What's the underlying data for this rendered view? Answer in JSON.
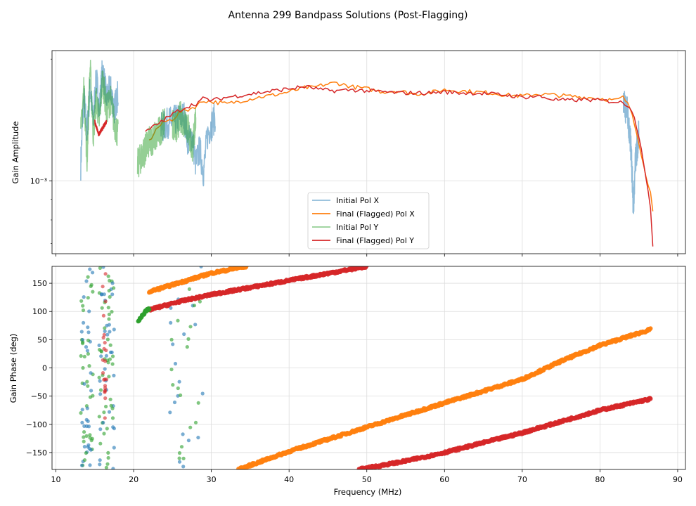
{
  "figure_title": "Antenna 299 Bandpass Solutions (Post-Flagging)",
  "colors": {
    "initial_x": "#1f77b4",
    "final_x": "#ff7f0e",
    "initial_y": "#2ca02c",
    "final_y": "#d62728"
  },
  "chart_data": [
    {
      "type": "line",
      "title": "",
      "xlabel": "",
      "ylabel": "Gain Amplitude",
      "yscale": "log",
      "xlim": [
        9.5,
        91
      ],
      "ylim": [
        0.00066,
        0.0021
      ],
      "ytick_labels": [
        {
          "value": 0.001,
          "label": "10⁻³"
        }
      ],
      "legend": {
        "position": "lower-center",
        "entries": [
          "Initial Pol X",
          "Final (Flagged) Pol X",
          "Initial Pol Y",
          "Final (Flagged) Pol Y"
        ]
      },
      "series": [
        {
          "name": "Initial Pol X",
          "color_key": "initial_x",
          "alpha": 0.5,
          "segments": [
            {
              "x": [
                13.2,
                13.6,
                14.0,
                14.4,
                14.8,
                15.2,
                15.6,
                16.0,
                16.5,
                17.0,
                17.5,
                18.0
              ],
              "y": [
                0.0011,
                0.0016,
                0.0013,
                0.0017,
                0.0014,
                0.0018,
                0.0015,
                0.0019,
                0.0016,
                0.0017,
                0.0015,
                0.00165
              ]
            },
            {
              "x": [
                23.5,
                24.5,
                25.5,
                26.5,
                27.0,
                27.5,
                28.0,
                28.5,
                29.0,
                29.5,
                30.5
              ],
              "y": [
                0.00135,
                0.0014,
                0.00142,
                0.00145,
                0.00125,
                0.0013,
                0.0011,
                0.0012,
                0.00105,
                0.0013,
                0.00145
              ]
            },
            {
              "x": [
                83.0,
                83.5,
                84.0,
                84.3,
                84.6,
                85.0
              ],
              "y": [
                0.00155,
                0.0015,
                0.0012,
                0.00085,
                0.00115,
                0.0013
              ]
            }
          ]
        },
        {
          "name": "Final (Flagged) Pol X",
          "color_key": "final_x",
          "alpha": 1,
          "segments": [
            {
              "x": [
                22.0,
                23.0,
                24.0,
                25.0,
                26.0,
                27.0,
                28.0,
                29.0,
                30.0,
                32.0,
                34.0,
                36.0,
                38.0,
                40.0,
                42.0,
                43.0,
                44.0,
                46.0,
                48.0,
                50.0,
                52.0,
                54.0,
                56.0,
                58.0,
                60.0,
                62.0,
                64.0,
                66.0,
                68.0,
                70.0,
                72.0,
                74.0,
                76.0,
                78.0,
                80.0,
                82.0,
                83.0,
                84.0,
                85.0,
                85.5,
                86.0,
                86.5,
                86.8
              ],
              "y": [
                0.00125,
                0.00135,
                0.0014,
                0.00142,
                0.00148,
                0.0015,
                0.00153,
                0.00158,
                0.00157,
                0.00155,
                0.00158,
                0.00161,
                0.00163,
                0.00166,
                0.0017,
                0.0017,
                0.00172,
                0.00175,
                0.00171,
                0.00169,
                0.00166,
                0.00167,
                0.00164,
                0.00165,
                0.00168,
                0.00167,
                0.00166,
                0.00165,
                0.00163,
                0.00162,
                0.00164,
                0.00163,
                0.00162,
                0.00161,
                0.0016,
                0.00158,
                0.00161,
                0.0015,
                0.00125,
                0.00112,
                0.001,
                0.00095,
                0.00085
              ]
            }
          ]
        },
        {
          "name": "Initial Pol Y",
          "color_key": "initial_y",
          "alpha": 0.5,
          "segments": [
            {
              "x": [
                13.2,
                13.6,
                14.0,
                14.4,
                14.8,
                15.2,
                15.6,
                16.0,
                16.5,
                17.0,
                17.5,
                18.0
              ],
              "y": [
                0.0013,
                0.0017,
                0.0011,
                0.0019,
                0.0013,
                0.0016,
                0.0014,
                0.0018,
                0.0015,
                0.0016,
                0.0014,
                0.0013
              ]
            },
            {
              "x": [
                20.5,
                21.0,
                21.5,
                22.0,
                23.0,
                24.0
              ],
              "y": [
                0.0011,
                0.00115,
                0.0012,
                0.00125,
                0.0013,
                0.0014
              ]
            },
            {
              "x": [
                25.0,
                25.5,
                26.0,
                26.5,
                27.0,
                27.5,
                28.0
              ],
              "y": [
                0.0014,
                0.00135,
                0.00145,
                0.0014,
                0.00135,
                0.0012,
                0.0014
              ]
            }
          ]
        },
        {
          "name": "Final (Flagged) Pol Y",
          "color_key": "final_y",
          "alpha": 1,
          "segments": [
            {
              "x": [
                15.0,
                15.5,
                16.0,
                16.5
              ],
              "y": [
                0.0014,
                0.0013,
                0.00135,
                0.0014
              ]
            },
            {
              "x": [
                21.5,
                23.0,
                24.0,
                25.0,
                26.0,
                27.0,
                28.0,
                29.0,
                30.0,
                32.0,
                34.0,
                36.0,
                38.0,
                40.0,
                42.0,
                43.0,
                44.0,
                46.0,
                48.0,
                50.0,
                52.0,
                54.0,
                56.0,
                58.0,
                60.0,
                62.0,
                64.0,
                66.0,
                68.0,
                70.0,
                72.0,
                74.0,
                76.0,
                78.0,
                80.0,
                82.0,
                83.0,
                84.0,
                85.0,
                85.5,
                86.0,
                86.5,
                86.8
              ],
              "y": [
                0.00132,
                0.00138,
                0.00142,
                0.00146,
                0.0015,
                0.00153,
                0.00155,
                0.0016,
                0.00158,
                0.00161,
                0.00163,
                0.00165,
                0.00167,
                0.00169,
                0.00171,
                0.0017,
                0.00168,
                0.00167,
                0.00168,
                0.00167,
                0.00166,
                0.00165,
                0.00165,
                0.00165,
                0.00166,
                0.00165,
                0.00165,
                0.00164,
                0.00163,
                0.00161,
                0.00162,
                0.00159,
                0.00158,
                0.00159,
                0.00158,
                0.00157,
                0.00156,
                0.00152,
                0.0013,
                0.00115,
                0.001,
                0.00085,
                0.00068
              ]
            }
          ]
        }
      ]
    },
    {
      "type": "scatter",
      "title": "",
      "xlabel": "Frequency (MHz)",
      "ylabel": "Gain Phase (deg)",
      "xlim": [
        9.5,
        91
      ],
      "ylim": [
        -180,
        180
      ],
      "xticks": [
        10,
        20,
        30,
        40,
        50,
        60,
        70,
        80,
        90
      ],
      "yticks": [
        -150,
        -100,
        -50,
        0,
        50,
        100,
        150
      ],
      "series": [
        {
          "name": "Final (Flagged) Pol X",
          "color_key": "final_x",
          "marker_size": 3.2,
          "segments": [
            {
              "x": [
                22.0,
                30.0,
                34.5
              ],
              "y": [
                135,
                168,
                180
              ]
            },
            {
              "x": [
                33.5,
                40.0,
                50.0,
                60.0,
                70.0,
                75.0,
                80.0,
                86.5
              ],
              "y": [
                -180,
                -148,
                -105,
                -62,
                -20,
                12,
                40,
                68
              ]
            }
          ]
        },
        {
          "name": "Final (Flagged) Pol Y",
          "color_key": "final_y",
          "marker_size": 3.2,
          "segments": [
            {
              "x": [
                22.0,
                26.0,
                30.0,
                40.0,
                50.0
              ],
              "y": [
                103,
                118,
                130,
                155,
                180
              ]
            },
            {
              "x": [
                49.0,
                55.0,
                60.0,
                70.0,
                80.0,
                86.5
              ],
              "y": [
                -180,
                -165,
                -150,
                -115,
                -75,
                -55
              ]
            }
          ]
        },
        {
          "name": "Initial Pol Y",
          "color_key": "initial_y",
          "marker_size": 3.2,
          "segments": [
            {
              "x": [
                20.6,
                21.5,
                22.0
              ],
              "y": [
                82,
                100,
                105
              ]
            }
          ]
        }
      ],
      "scatter_columns": [
        {
          "x_range": [
            13.2,
            14.8
          ],
          "colors": [
            "initial_x",
            "initial_y"
          ],
          "count": 70
        },
        {
          "x_range": [
            15.5,
            17.5
          ],
          "colors": [
            "initial_x",
            "initial_y"
          ],
          "count": 80
        },
        {
          "x_range": [
            16.0,
            16.6
          ],
          "colors": [
            "final_y"
          ],
          "count": 22
        },
        {
          "x_range": [
            24.5,
            29.0
          ],
          "colors": [
            "initial_x",
            "initial_y"
          ],
          "count": 40
        }
      ]
    }
  ]
}
